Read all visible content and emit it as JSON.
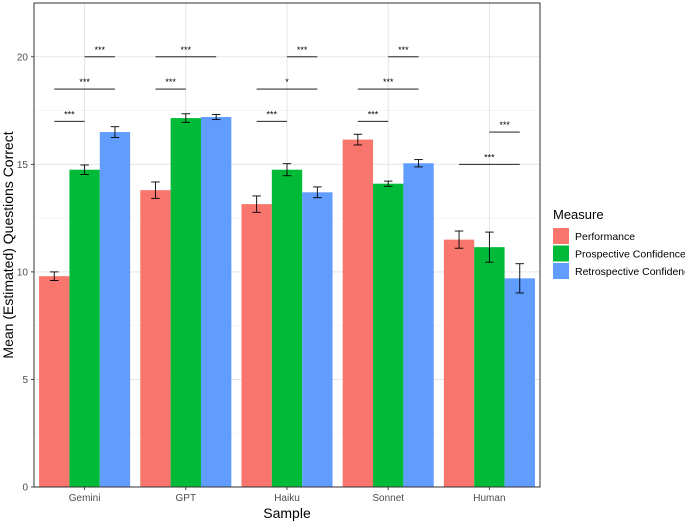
{
  "chart_data": {
    "type": "bar",
    "xlabel": "Sample",
    "ylabel": "Mean (Estimated) Questions Correct",
    "ylim": [
      0,
      22.5
    ],
    "yticks": [
      0,
      5,
      10,
      15,
      20
    ],
    "grid": true,
    "legend_title": "Measure",
    "legend_position": "right",
    "categories": [
      "Gemini",
      "GPT",
      "Haiku",
      "Sonnet",
      "Human"
    ],
    "series": [
      {
        "name": "Performance",
        "color": "#F8766D",
        "values": [
          9.8,
          13.8,
          13.15,
          16.15,
          11.5
        ],
        "errors": [
          0.2,
          0.38,
          0.38,
          0.25,
          0.4
        ]
      },
      {
        "name": "Prospective Confidence",
        "color": "#00BA38",
        "values": [
          14.75,
          17.15,
          14.75,
          14.1,
          11.15
        ],
        "errors": [
          0.22,
          0.2,
          0.28,
          0.12,
          0.7
        ]
      },
      {
        "name": "Retrospective Confidence",
        "color": "#619CFF",
        "values": [
          16.5,
          17.2,
          13.7,
          15.05,
          9.7
        ],
        "errors": [
          0.25,
          0.12,
          0.25,
          0.17,
          0.68
        ]
      }
    ],
    "significance": [
      {
        "category": 0,
        "from_series": 0,
        "to_series": 1,
        "y": 17.0,
        "label": "***"
      },
      {
        "category": 0,
        "from_series": 0,
        "to_series": 2,
        "y": 18.5,
        "label": "***"
      },
      {
        "category": 0,
        "from_series": 1,
        "to_series": 2,
        "y": 20.0,
        "label": "***"
      },
      {
        "category": 1,
        "from_series": 0,
        "to_series": 1,
        "y": 18.5,
        "label": "***"
      },
      {
        "category": 1,
        "from_series": 0,
        "to_series": 2,
        "y": 20.0,
        "label": "***"
      },
      {
        "category": 2,
        "from_series": 0,
        "to_series": 1,
        "y": 17.0,
        "label": "***"
      },
      {
        "category": 2,
        "from_series": 0,
        "to_series": 2,
        "y": 18.5,
        "label": "*"
      },
      {
        "category": 2,
        "from_series": 1,
        "to_series": 2,
        "y": 20.0,
        "label": "***"
      },
      {
        "category": 3,
        "from_series": 0,
        "to_series": 1,
        "y": 17.0,
        "label": "***"
      },
      {
        "category": 3,
        "from_series": 0,
        "to_series": 2,
        "y": 18.5,
        "label": "***"
      },
      {
        "category": 3,
        "from_series": 1,
        "to_series": 2,
        "y": 20.0,
        "label": "***"
      },
      {
        "category": 4,
        "from_series": 0,
        "to_series": 2,
        "y": 15.0,
        "label": "***"
      },
      {
        "category": 4,
        "from_series": 1,
        "to_series": 2,
        "y": 16.5,
        "label": "***"
      }
    ]
  }
}
